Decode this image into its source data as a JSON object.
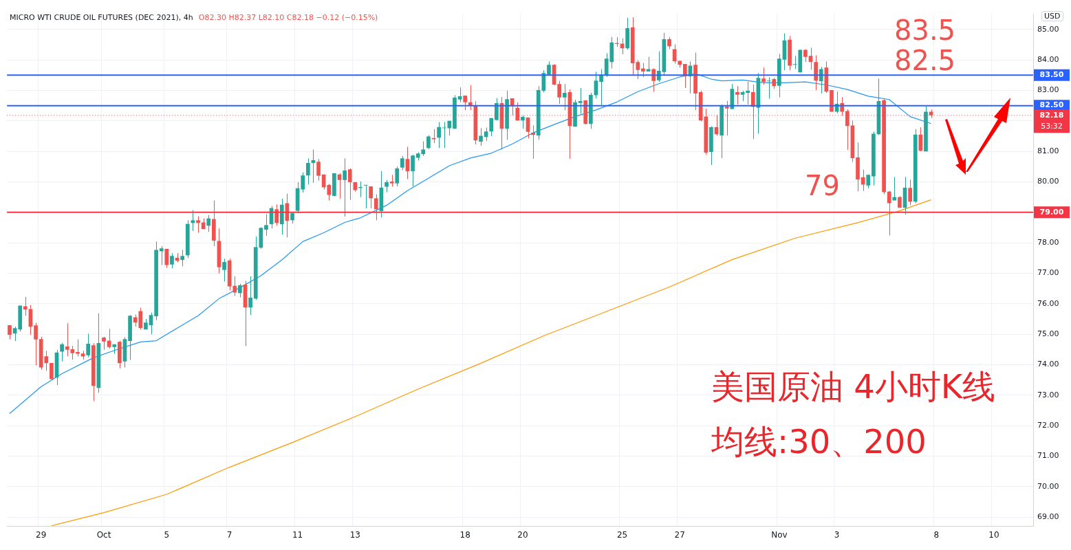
{
  "chart_data": {
    "type": "candlestick",
    "title": "MICRO WTI CRUDE OIL FUTURES (DEC 2021), 4h",
    "subtitle": "O82.30 H82.37 L82.10 C82.18 −0.12 (−0.15%)",
    "ylabel": "USD",
    "categories": [
      null,
      null,
      null,
      null,
      null,
      null,
      "29",
      null,
      null,
      null,
      null,
      null,
      null,
      null,
      null,
      null,
      null,
      null,
      "Oct",
      null,
      null,
      null,
      null,
      null,
      null,
      null,
      null,
      null,
      null,
      null,
      "5",
      null,
      null,
      null,
      null,
      null,
      null,
      null,
      null,
      null,
      null,
      null,
      "7",
      null,
      null,
      null,
      null,
      null,
      null,
      null,
      null,
      null,
      null,
      null,
      null,
      "11",
      null,
      null,
      null,
      null,
      null,
      null,
      null,
      null,
      null,
      null,
      "13",
      null,
      null,
      null,
      null,
      null,
      null,
      null,
      null,
      null,
      null,
      null,
      null,
      null,
      null,
      null,
      null,
      null,
      null,
      null,
      null,
      "18",
      null,
      null,
      null,
      null,
      null,
      null,
      null,
      null,
      null,
      null,
      "20",
      null,
      null,
      null,
      null,
      null,
      null,
      null,
      null,
      null,
      null,
      null,
      null,
      null,
      null,
      null,
      null,
      null,
      null,
      "25",
      null,
      null,
      null,
      null,
      null,
      null,
      null,
      null,
      null,
      null,
      "27",
      null,
      null,
      null,
      null,
      null,
      null,
      null,
      null,
      null,
      null,
      null,
      null,
      null,
      null,
      null,
      null,
      null,
      null,
      "Nov",
      null,
      null,
      null,
      null,
      null,
      null,
      null,
      null,
      null,
      null,
      "3",
      null,
      null,
      null,
      null,
      null,
      null,
      null,
      null,
      null,
      null,
      null,
      null,
      null,
      null,
      null,
      null,
      null,
      null,
      "8",
      null,
      null,
      null,
      null,
      null,
      null,
      null,
      null,
      null,
      null,
      "10",
      null,
      null,
      null,
      null,
      null,
      null,
      null
    ],
    "ohlc": [
      [
        75.3,
        75.3,
        74.83,
        74.98
      ],
      [
        75.03,
        75.25,
        74.78,
        75.2
      ],
      [
        75.16,
        75.94,
        75.09,
        75.94
      ],
      [
        75.92,
        76.23,
        75.61,
        75.81
      ],
      [
        75.83,
        75.96,
        74.98,
        75.25
      ],
      [
        75.29,
        75.38,
        73.98,
        74.83
      ],
      [
        74.84,
        74.92,
        73.84,
        73.91
      ],
      [
        74.28,
        74.46,
        73.8,
        74.05
      ],
      [
        74.06,
        74.06,
        73.5,
        73.53
      ],
      [
        73.58,
        74.49,
        73.33,
        74.4
      ],
      [
        74.43,
        74.72,
        74.11,
        74.67
      ],
      [
        74.6,
        75.36,
        74.28,
        74.49
      ],
      [
        74.51,
        74.62,
        74.17,
        74.38
      ],
      [
        74.42,
        74.83,
        74.27,
        74.36
      ],
      [
        74.37,
        74.46,
        74.17,
        74.27
      ],
      [
        74.31,
        75.02,
        74.25,
        74.69
      ],
      [
        74.64,
        74.71,
        72.81,
        73.31
      ],
      [
        73.24,
        75.69,
        73.08,
        74.71
      ],
      [
        74.89,
        74.92,
        74.49,
        74.76
      ],
      [
        74.79,
        75.18,
        74.53,
        74.58
      ],
      [
        74.58,
        74.67,
        74.36,
        74.67
      ],
      [
        74.75,
        74.79,
        73.89,
        74.05
      ],
      [
        74.11,
        74.9,
        73.91,
        74.84
      ],
      [
        74.78,
        75.63,
        74.16,
        75.61
      ],
      [
        75.56,
        75.65,
        75.25,
        75.39
      ],
      [
        75.76,
        75.87,
        75.16,
        75.21
      ],
      [
        75.16,
        75.5,
        75.16,
        75.38
      ],
      [
        75.3,
        75.71,
        75.0,
        75.63
      ],
      [
        75.59,
        78.04,
        75.46,
        77.77
      ],
      [
        77.72,
        77.89,
        77.27,
        77.82
      ],
      [
        77.8,
        77.8,
        77.18,
        77.27
      ],
      [
        77.29,
        77.66,
        77.16,
        77.57
      ],
      [
        77.51,
        77.66,
        77.36,
        77.41
      ],
      [
        77.44,
        77.77,
        77.23,
        77.57
      ],
      [
        77.59,
        78.74,
        77.5,
        78.62
      ],
      [
        78.65,
        79.07,
        78.39,
        78.74
      ],
      [
        78.74,
        78.87,
        78.33,
        78.65
      ],
      [
        78.67,
        78.8,
        78.45,
        78.45
      ],
      [
        78.56,
        78.91,
        78.36,
        78.8
      ],
      [
        78.78,
        79.39,
        77.89,
        78.07
      ],
      [
        78.06,
        78.47,
        76.99,
        77.2
      ],
      [
        77.11,
        77.48,
        76.73,
        77.37
      ],
      [
        77.42,
        77.48,
        76.44,
        76.57
      ],
      [
        76.59,
        76.9,
        76.26,
        76.37
      ],
      [
        76.35,
        76.66,
        76.21,
        76.61
      ],
      [
        76.63,
        76.75,
        74.61,
        75.88
      ],
      [
        75.88,
        76.9,
        75.63,
        76.2
      ],
      [
        76.17,
        78.21,
        76.13,
        77.86
      ],
      [
        77.84,
        78.51,
        77.8,
        78.49
      ],
      [
        78.43,
        78.94,
        78.23,
        78.58
      ],
      [
        78.61,
        79.21,
        78.47,
        79.14
      ],
      [
        79.1,
        79.26,
        78.56,
        78.65
      ],
      [
        78.61,
        79.45,
        78.27,
        79.25
      ],
      [
        79.3,
        79.61,
        78.18,
        78.72
      ],
      [
        78.74,
        78.99,
        78.63,
        78.97
      ],
      [
        79.05,
        79.99,
        78.97,
        79.79
      ],
      [
        79.75,
        80.31,
        79.65,
        80.21
      ],
      [
        80.21,
        80.77,
        79.91,
        80.62
      ],
      [
        80.62,
        81.06,
        79.97,
        80.71
      ],
      [
        80.66,
        80.75,
        80.04,
        80.2
      ],
      [
        80.24,
        80.24,
        79.75,
        79.82
      ],
      [
        79.9,
        79.93,
        79.39,
        79.57
      ],
      [
        79.54,
        80.28,
        79.52,
        80.28
      ],
      [
        80.24,
        80.28,
        79.45,
        80.06
      ],
      [
        80.06,
        80.77,
        78.86,
        80.37
      ],
      [
        80.41,
        80.44,
        79.41,
        79.99
      ],
      [
        79.99,
        79.99,
        79.68,
        79.73
      ],
      [
        79.8,
        80.01,
        79.5,
        79.83
      ],
      [
        79.88,
        79.9,
        79.13,
        79.9
      ],
      [
        79.85,
        79.85,
        79.13,
        79.46
      ],
      [
        79.46,
        79.59,
        78.74,
        79.1
      ],
      [
        79.04,
        80.35,
        78.83,
        79.81
      ],
      [
        79.84,
        80.06,
        79.66,
        79.99
      ],
      [
        80.01,
        80.23,
        79.84,
        79.95
      ],
      [
        79.95,
        80.5,
        79.85,
        80.44
      ],
      [
        80.47,
        80.85,
        80.38,
        80.77
      ],
      [
        80.75,
        81.15,
        80.09,
        80.35
      ],
      [
        80.35,
        80.89,
        79.85,
        80.86
      ],
      [
        80.79,
        80.97,
        80.7,
        80.93
      ],
      [
        80.91,
        81.33,
        80.85,
        81.06
      ],
      [
        81.11,
        81.53,
        81.07,
        81.49
      ],
      [
        81.44,
        81.73,
        81.27,
        81.4
      ],
      [
        81.45,
        81.96,
        81.11,
        81.8
      ],
      [
        81.76,
        81.96,
        81.11,
        81.78
      ],
      [
        81.76,
        82.0,
        81.52,
        82.0
      ],
      [
        81.74,
        82.84,
        81.74,
        82.76
      ],
      [
        82.7,
        83.1,
        82.61,
        82.81
      ],
      [
        82.83,
        82.83,
        82.35,
        82.61
      ],
      [
        82.61,
        83.17,
        82.35,
        82.5
      ],
      [
        82.51,
        82.65,
        81.23,
        81.36
      ],
      [
        81.32,
        81.76,
        81.18,
        81.51
      ],
      [
        81.47,
        81.78,
        81.34,
        81.65
      ],
      [
        81.65,
        82.09,
        81.5,
        82.09
      ],
      [
        82.03,
        82.75,
        82.01,
        82.58
      ],
      [
        82.58,
        82.78,
        81.06,
        81.74
      ],
      [
        81.74,
        82.99,
        81.38,
        82.71
      ],
      [
        82.74,
        82.74,
        82.18,
        82.48
      ],
      [
        82.43,
        82.61,
        82.01,
        82.01
      ],
      [
        82.01,
        82.18,
        81.74,
        82.13
      ],
      [
        82.11,
        82.11,
        81.43,
        81.64
      ],
      [
        81.61,
        81.85,
        80.76,
        81.54
      ],
      [
        81.52,
        83.14,
        81.38,
        83.01
      ],
      [
        82.99,
        83.66,
        82.93,
        83.57
      ],
      [
        83.52,
        83.95,
        83.5,
        83.84
      ],
      [
        83.84,
        83.86,
        83.17,
        83.19
      ],
      [
        83.21,
        83.31,
        82.56,
        82.77
      ],
      [
        82.77,
        83.21,
        82.35,
        82.92
      ],
      [
        82.94,
        83.03,
        80.76,
        81.83
      ],
      [
        81.81,
        82.69,
        81.81,
        82.61
      ],
      [
        82.59,
        83.08,
        82.23,
        82.65
      ],
      [
        82.67,
        82.67,
        81.88,
        81.9
      ],
      [
        81.9,
        82.92,
        81.74,
        82.85
      ],
      [
        82.84,
        83.61,
        82.74,
        83.32
      ],
      [
        83.28,
        83.7,
        82.52,
        83.5
      ],
      [
        83.5,
        84.22,
        83.44,
        84.04
      ],
      [
        83.93,
        84.75,
        83.72,
        84.57
      ],
      [
        84.55,
        84.75,
        84.43,
        84.52
      ],
      [
        84.53,
        84.71,
        84.18,
        84.38
      ],
      [
        84.38,
        85.38,
        84.34,
        85.04
      ],
      [
        85.07,
        85.4,
        83.49,
        83.89
      ],
      [
        83.93,
        83.99,
        83.37,
        83.67
      ],
      [
        83.72,
        83.9,
        83.44,
        83.62
      ],
      [
        83.62,
        84.1,
        83.62,
        83.7
      ],
      [
        83.7,
        83.72,
        82.96,
        83.31
      ],
      [
        83.33,
        84.28,
        83.28,
        83.64
      ],
      [
        83.6,
        84.89,
        83.5,
        84.68
      ],
      [
        84.68,
        84.75,
        84.35,
        84.45
      ],
      [
        84.35,
        84.51,
        83.88,
        83.96
      ],
      [
        83.97,
        83.97,
        83.75,
        83.84
      ],
      [
        83.87,
        83.87,
        83.08,
        83.46
      ],
      [
        83.46,
        83.95,
        82.9,
        83.81
      ],
      [
        83.84,
        84.24,
        82.35,
        82.9
      ],
      [
        82.94,
        82.99,
        81.98,
        82.02
      ],
      [
        82.14,
        82.4,
        80.89,
        80.96
      ],
      [
        80.98,
        81.82,
        80.55,
        81.79
      ],
      [
        81.79,
        82.19,
        81.52,
        81.56
      ],
      [
        81.52,
        82.54,
        80.78,
        82.5
      ],
      [
        82.47,
        82.65,
        81.52,
        82.41
      ],
      [
        82.39,
        83.21,
        82.39,
        83.05
      ],
      [
        82.94,
        83.14,
        82.54,
        82.86
      ],
      [
        82.86,
        82.99,
        82.65,
        82.94
      ],
      [
        82.92,
        83.28,
        82.54,
        82.99
      ],
      [
        82.94,
        83.19,
        81.4,
        82.46
      ],
      [
        82.43,
        83.57,
        81.58,
        83.41
      ],
      [
        83.39,
        83.75,
        83.19,
        83.28
      ],
      [
        83.3,
        83.43,
        82.73,
        83.32
      ],
      [
        83.37,
        83.41,
        83.05,
        83.14
      ],
      [
        83.15,
        84.2,
        82.77,
        84.04
      ],
      [
        84.01,
        84.87,
        83.66,
        84.64
      ],
      [
        84.66,
        84.78,
        83.66,
        83.81
      ],
      [
        83.84,
        84.13,
        83.7,
        83.86
      ],
      [
        83.59,
        84.33,
        83.59,
        84.33
      ],
      [
        84.33,
        84.35,
        83.93,
        84.1
      ],
      [
        84.13,
        84.4,
        83.68,
        83.93
      ],
      [
        83.93,
        84.15,
        83.01,
        83.32
      ],
      [
        83.3,
        83.77,
        82.9,
        83.7
      ],
      [
        83.75,
        83.95,
        82.92,
        82.96
      ],
      [
        83.01,
        83.01,
        82.3,
        82.3
      ],
      [
        82.3,
        82.96,
        82.25,
        82.56
      ],
      [
        82.58,
        82.78,
        82.17,
        82.3
      ],
      [
        82.32,
        82.38,
        81.05,
        81.83
      ],
      [
        81.85,
        82.01,
        80.65,
        80.78
      ],
      [
        80.8,
        81.29,
        79.69,
        80.08
      ],
      [
        80.15,
        80.4,
        79.7,
        79.91
      ],
      [
        79.88,
        80.23,
        79.79,
        80.23
      ],
      [
        80.18,
        81.65,
        79.88,
        81.58
      ],
      [
        81.56,
        83.39,
        81.54,
        82.65
      ],
      [
        82.68,
        82.74,
        79.59,
        79.66
      ],
      [
        79.68,
        79.7,
        78.24,
        79.3
      ],
      [
        79.39,
        80.16,
        79.39,
        79.5
      ],
      [
        79.5,
        79.53,
        79.15,
        79.15
      ],
      [
        79.15,
        80.16,
        78.93,
        79.81
      ],
      [
        79.8,
        80.07,
        79.23,
        79.35
      ],
      [
        79.35,
        81.73,
        79.3,
        81.55
      ],
      [
        81.55,
        81.79,
        81.0,
        81.02
      ],
      [
        81.0,
        82.47,
        81.0,
        82.3
      ],
      [
        82.3,
        82.37,
        82.1,
        82.18
      ],
      null,
      null,
      null,
      null,
      null,
      null,
      null,
      null,
      null,
      null,
      null,
      null,
      null,
      null,
      null,
      null,
      null,
      null,
      null
    ],
    "colors": [
      "#ef5350",
      "#26a69a",
      "#26a69a",
      "#ef5350",
      "#ef5350",
      "#ef5350",
      "#ef5350",
      "#ef5350",
      "#ef5350",
      "#26a69a",
      "#26a69a",
      "#ef5350",
      "#ef5350",
      "#ef5350",
      "#ef5350",
      "#26a69a",
      "#ef5350",
      "#26a69a",
      "#ef5350",
      "#ef5350",
      "#26a69a",
      "#ef5350",
      "#26a69a",
      "#26a69a",
      "#ef5350",
      "#ef5350",
      "#26a69a",
      "#26a69a",
      "#26a69a",
      "#26a69a",
      "#ef5350",
      "#26a69a",
      "#ef5350",
      "#26a69a",
      "#26a69a",
      "#26a69a",
      "#ef5350",
      "#ef5350",
      "#26a69a",
      "#ef5350",
      "#ef5350",
      "#26a69a",
      "#ef5350",
      "#ef5350",
      "#26a69a",
      "#ef5350",
      "#26a69a",
      "#26a69a",
      "#26a69a",
      "#26a69a",
      "#26a69a",
      "#ef5350",
      "#26a69a",
      "#ef5350",
      "#26a69a",
      "#26a69a",
      "#26a69a",
      "#26a69a",
      "#26a69a",
      "#ef5350",
      "#ef5350",
      "#ef5350",
      "#26a69a",
      "#ef5350",
      "#26a69a",
      "#ef5350",
      "#ef5350",
      "#26a69a",
      "#26a69a",
      "#ef5350",
      "#ef5350",
      "#26a69a",
      "#26a69a",
      "#ef5350",
      "#26a69a",
      "#26a69a",
      "#ef5350",
      "#26a69a",
      "#26a69a",
      "#26a69a",
      "#26a69a",
      "#ef5350",
      "#26a69a",
      "#26a69a",
      "#26a69a",
      "#26a69a",
      "#26a69a",
      "#ef5350",
      "#ef5350",
      "#ef5350",
      "#26a69a",
      "#26a69a",
      "#26a69a",
      "#26a69a",
      "#ef5350",
      "#26a69a",
      "#ef5350",
      "#ef5350",
      "#26a69a",
      "#ef5350",
      "#ef5350",
      "#26a69a",
      "#26a69a",
      "#26a69a",
      "#ef5350",
      "#ef5350",
      "#26a69a",
      "#ef5350",
      "#26a69a",
      "#26a69a",
      "#ef5350",
      "#26a69a",
      "#26a69a",
      "#26a69a",
      "#26a69a",
      "#26a69a",
      "#ef5350",
      "#ef5350",
      "#26a69a",
      "#ef5350",
      "#ef5350",
      "#ef5350",
      "#26a69a",
      "#ef5350",
      "#26a69a",
      "#26a69a",
      "#ef5350",
      "#ef5350",
      "#ef5350",
      "#ef5350",
      "#26a69a",
      "#ef5350",
      "#ef5350",
      "#ef5350",
      "#26a69a",
      "#ef5350",
      "#26a69a",
      "#ef5350",
      "#26a69a",
      "#ef5350",
      "#26a69a",
      "#26a69a",
      "#ef5350",
      "#26a69a",
      "#ef5350",
      "#26a69a",
      "#ef5350",
      "#26a69a",
      "#26a69a",
      "#ef5350",
      "#26a69a",
      "#26a69a",
      "#ef5350",
      "#ef5350",
      "#ef5350",
      "#26a69a",
      "#ef5350",
      "#ef5350",
      "#26a69a",
      "#ef5350",
      "#ef5350",
      "#ef5350",
      "#ef5350",
      "#ef5350",
      "#26a69a",
      "#26a69a",
      "#26a69a",
      "#ef5350",
      "#ef5350",
      "#26a69a",
      "#ef5350",
      "#26a69a",
      "#ef5350",
      "#26a69a",
      "#ef5350",
      "#26a69a",
      "#ef5350",
      null,
      null,
      null,
      null,
      null,
      null,
      null,
      null,
      null,
      null,
      null,
      null,
      null,
      null,
      null,
      null,
      null,
      null,
      null
    ],
    "series": [
      {
        "type": "line",
        "color": "#2196f3",
        "values": [
          72.4,
          null,
          null,
          null,
          null,
          null,
          73.28,
          null,
          null,
          null,
          73.71,
          null,
          null,
          null,
          null,
          null,
          74.23,
          null,
          null,
          null,
          74.47,
          null,
          null,
          null,
          null,
          74.75,
          null,
          null,
          74.79,
          null,
          null,
          null,
          75.2,
          null,
          null,
          null,
          75.61,
          null,
          null,
          null,
          76.17,
          null,
          null,
          null,
          76.53,
          null,
          null,
          null,
          76.92,
          null,
          null,
          null,
          77.44,
          null,
          null,
          null,
          78.04,
          null,
          null,
          null,
          78.33,
          null,
          null,
          null,
          78.67,
          null,
          null,
          78.82,
          null,
          null,
          null,
          null,
          79.23,
          null,
          null,
          null,
          79.71,
          null,
          null,
          null,
          80.12,
          null,
          null,
          null,
          80.53,
          null,
          null,
          null,
          80.78,
          null,
          null,
          null,
          80.94,
          null,
          null,
          null,
          81.24,
          null,
          null,
          null,
          81.61,
          null,
          null,
          null,
          81.88,
          null,
          null,
          null,
          82.14,
          null,
          null,
          null,
          82.36,
          null,
          null,
          null,
          82.62,
          null,
          null,
          null,
          82.96,
          null,
          null,
          null,
          83.22,
          null,
          null,
          null,
          83.44,
          null,
          null,
          83.55,
          null,
          null,
          83.37,
          null,
          83.31,
          null,
          null,
          null,
          83.34,
          null,
          null,
          null,
          83.25,
          null,
          null,
          null,
          83.25,
          null,
          null,
          null,
          83.28,
          null,
          null,
          null,
          83.18,
          null,
          null,
          null,
          83.03,
          null,
          null,
          null,
          82.81,
          null,
          null,
          null,
          82.7,
          null,
          null,
          null,
          82.14,
          null,
          null,
          null,
          81.91,
          null,
          null,
          null,
          null,
          null,
          null,
          null,
          null,
          null,
          null,
          null,
          null,
          null,
          null,
          null,
          null,
          null,
          null,
          null
        ]
      },
      {
        "type": "line",
        "color": "#ff9800",
        "values": [
          null,
          null,
          null,
          null,
          null,
          null,
          null,
          null,
          68.72,
          null,
          null,
          null,
          null,
          null,
          null,
          null,
          null,
          null,
          69.15,
          null,
          null,
          null,
          null,
          null,
          null,
          null,
          null,
          null,
          null,
          null,
          69.75,
          null,
          null,
          null,
          null,
          null,
          null,
          null,
          null,
          null,
          null,
          null,
          70.64,
          null,
          null,
          null,
          null,
          null,
          null,
          null,
          null,
          null,
          null,
          null,
          71.45,
          null,
          null,
          null,
          null,
          null,
          null,
          null,
          null,
          null,
          null,
          null,
          72.3,
          null,
          null,
          null,
          null,
          null,
          null,
          null,
          null,
          null,
          null,
          null,
          73.2,
          null,
          null,
          null,
          null,
          null,
          null,
          null,
          null,
          null,
          null,
          null,
          74.05,
          null,
          null,
          null,
          null,
          null,
          null,
          null,
          null,
          null,
          null,
          null,
          74.95,
          null,
          null,
          null,
          null,
          null,
          null,
          null,
          null,
          null,
          null,
          null,
          75.75,
          null,
          null,
          null,
          null,
          null,
          null,
          null,
          null,
          null,
          null,
          null,
          76.55,
          null,
          null,
          null,
          null,
          null,
          null,
          null,
          null,
          null,
          null,
          null,
          77.45,
          null,
          null,
          null,
          null,
          null,
          null,
          null,
          null,
          null,
          null,
          null,
          78.15,
          null,
          null,
          null,
          null,
          null,
          null,
          null,
          null,
          null,
          null,
          null,
          78.66,
          null,
          null,
          null,
          null,
          null,
          null,
          null,
          79.05,
          null,
          null,
          null,
          null,
          null,
          79.41,
          null,
          null,
          null,
          null,
          null,
          null,
          null,
          null,
          null,
          null,
          null,
          null,
          null,
          null,
          null,
          null,
          null,
          null,
          null
        ]
      }
    ],
    "ylim": [
      68.7,
      85.5
    ],
    "yticks": [
      {
        "value": 69,
        "label": "69.00"
      },
      {
        "value": 70,
        "label": "70.00"
      },
      {
        "value": 71,
        "label": "71.00"
      },
      {
        "value": 72,
        "label": "72.00"
      },
      {
        "value": 73,
        "label": "73.00"
      },
      {
        "value": 74,
        "label": "74.00"
      },
      {
        "value": 75,
        "label": "75.00"
      },
      {
        "value": 76,
        "label": "76.00"
      },
      {
        "value": 77,
        "label": "77.00"
      },
      {
        "value": 78,
        "label": "78.00"
      },
      {
        "value": 79,
        "label": null
      },
      {
        "value": 80,
        "label": "80.00"
      },
      {
        "value": 81,
        "label": "81.00"
      },
      {
        "value": 82,
        "label": null
      },
      {
        "value": 83,
        "label": "83.00"
      },
      {
        "value": 84,
        "label": "84.00"
      },
      {
        "value": 85,
        "label": "85.00"
      }
    ],
    "ref_lines": [
      {
        "axis": "y",
        "value": 83.5,
        "label": "83.50",
        "color": "#2962ff"
      },
      {
        "axis": "y",
        "value": 82.5,
        "label": "82.50",
        "color": "#2962ff"
      },
      {
        "axis": "y",
        "value": 79,
        "label": "79.00",
        "color": "#f23645"
      },
      {
        "axis": "y",
        "value": 82.18,
        "label": "82.18",
        "color": "#f23645",
        "line_style": "dotted"
      }
    ],
    "annotations": [
      "83.5",
      "82.5",
      "79",
      "美国原油 4小时K线",
      "均线:30、200",
      "53:32"
    ],
    "grid": true
  }
}
